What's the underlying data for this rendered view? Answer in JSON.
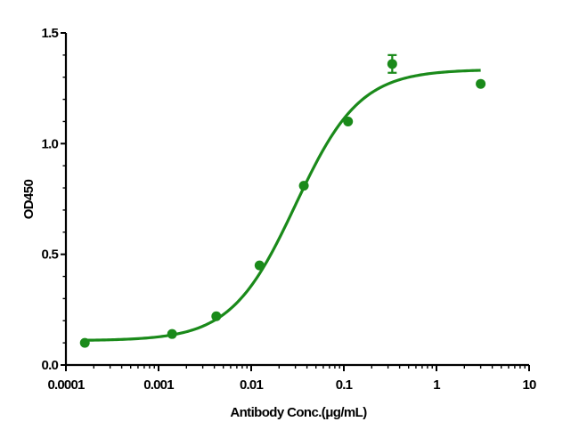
{
  "chart_data": {
    "type": "scatter",
    "xlabel": "Antibody Conc.(μg/mL)",
    "ylabel": "OD450",
    "x_scale": "log",
    "xlim": [
      0.0001,
      10
    ],
    "ylim": [
      0,
      1.5
    ],
    "x_ticks": [
      "0.0001",
      "0.001",
      "0.01",
      "0.1",
      "1",
      "10"
    ],
    "y_ticks": [
      "0.0",
      "0.5",
      "1.0",
      "1.5"
    ],
    "grid": false,
    "color": "#1a8a1a",
    "series": [
      {
        "points": [
          {
            "x": 0.00016,
            "y": 0.1
          },
          {
            "x": 0.0014,
            "y": 0.14
          },
          {
            "x": 0.0042,
            "y": 0.22
          },
          {
            "x": 0.0123,
            "y": 0.45
          },
          {
            "x": 0.037,
            "y": 0.81
          },
          {
            "x": 0.111,
            "y": 1.1
          },
          {
            "x": 0.333,
            "y": 1.36,
            "err": 0.04
          },
          {
            "x": 3.0,
            "y": 1.27
          }
        ]
      }
    ],
    "fit": {
      "model": "4PL",
      "bottom": 0.11,
      "top": 1.335,
      "ec50": 0.03,
      "hill": 1.25,
      "x_range": [
        0.00016,
        3.0
      ]
    }
  }
}
